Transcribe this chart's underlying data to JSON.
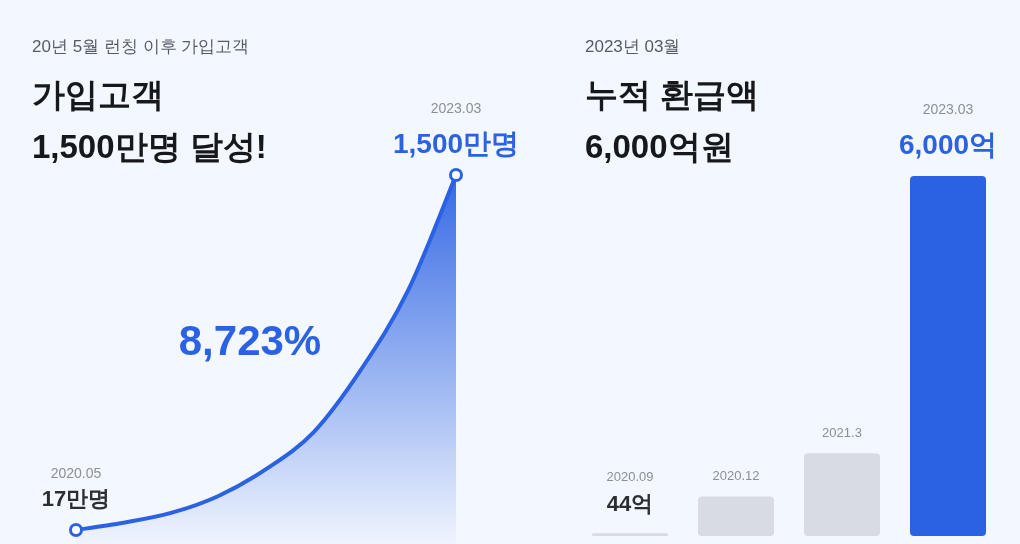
{
  "chart_data": [
    {
      "type": "area",
      "subtitle": "20년 5월 런칭 이후 가입고객",
      "title": "가입고객\n1,500만명 달성!",
      "categories": [
        null,
        null,
        null,
        null,
        null,
        null,
        null,
        null,
        null
      ],
      "series": [
        {
          "color": "#2b62e3",
          "values": [
            17,
            47,
            88,
            159,
            271,
            425,
            687,
            1021,
            1500
          ],
          "value_labels": [
            "17만명",
            null,
            null,
            null,
            null,
            null,
            null,
            null,
            "1,500만명"
          ]
        }
      ],
      "annotations": [
        "8,723%",
        "2020.05",
        "2023.03"
      ]
    },
    {
      "type": "bar",
      "subtitle": "2023년 03월",
      "title": "누적 환급액\n6,000억원",
      "categories": [
        null,
        null,
        null,
        null
      ],
      "values": [
        44,
        660,
        1380,
        6000
      ],
      "colors": [
        "#d8dbe2",
        "#d8dbe2",
        "#d8dbe2",
        "#2b62e3"
      ],
      "value_labels": [
        "44억",
        null,
        null,
        "6,000억"
      ],
      "annotations": [
        "2020.09",
        "2020.12",
        "2021.3",
        "2023.03"
      ]
    }
  ]
}
